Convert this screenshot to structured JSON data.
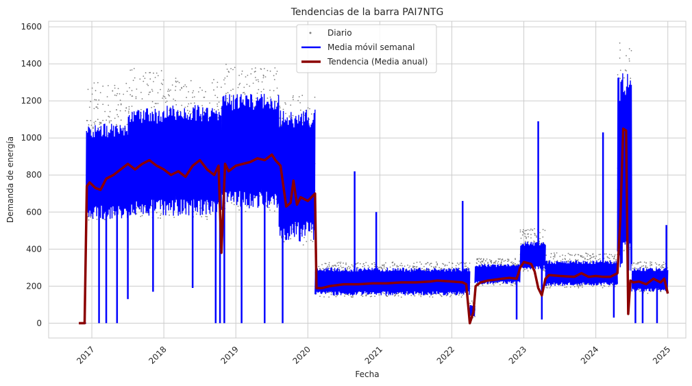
{
  "chart_data": {
    "type": "line",
    "title": "Tendencias de la barra PAI7NTG",
    "xlabel": "Fecha",
    "ylabel": "Demanda de energía",
    "xlim": [
      2016.4,
      2025.25
    ],
    "ylim": [
      -80,
      1630
    ],
    "x_ticks": [
      2017,
      2018,
      2019,
      2020,
      2021,
      2022,
      2023,
      2024,
      2025
    ],
    "x_tick_labels": [
      "2017",
      "2018",
      "2019",
      "2020",
      "2021",
      "2022",
      "2023",
      "2024",
      "2025"
    ],
    "y_ticks": [
      0,
      200,
      400,
      600,
      800,
      1000,
      1200,
      1400,
      1600
    ],
    "y_tick_labels": [
      "0",
      "200",
      "400",
      "600",
      "800",
      "1000",
      "1200",
      "1400",
      "1600"
    ],
    "grid": true,
    "legend_position": "upper center",
    "colors": {
      "daily": "#808080",
      "weekly": "#0000ff",
      "trend": "#8b0000",
      "grid": "#cccccc",
      "axes_edge": "#cccccc"
    },
    "series": [
      {
        "name": "Diario",
        "style": "scatter",
        "segments": [
          {
            "x": [
              2016.82,
              2016.92
            ],
            "low": 0,
            "high": 0
          },
          {
            "x": [
              2016.92,
              2017.5
            ],
            "low": 550,
            "high": 1300
          },
          {
            "x": [
              2017.5,
              2018.0
            ],
            "low": 560,
            "high": 1380
          },
          {
            "x": [
              2018.0,
              2018.8
            ],
            "low": 560,
            "high": 1330
          },
          {
            "x": [
              2018.8,
              2019.6
            ],
            "low": 600,
            "high": 1400
          },
          {
            "x": [
              2019.6,
              2020.1
            ],
            "low": 420,
            "high": 1230
          },
          {
            "x": [
              2020.1,
              2022.25
            ],
            "low": 140,
            "high": 330
          },
          {
            "x": [
              2022.25,
              2022.32
            ],
            "low": 20,
            "high": 120
          },
          {
            "x": [
              2022.32,
              2022.95
            ],
            "low": 200,
            "high": 350
          },
          {
            "x": [
              2022.95,
              2023.3
            ],
            "low": 280,
            "high": 510
          },
          {
            "x": [
              2023.3,
              2024.3
            ],
            "low": 190,
            "high": 380
          },
          {
            "x": [
              2024.3,
              2024.5
            ],
            "low": 260,
            "high": 1520
          },
          {
            "x": [
              2024.5,
              2025.0
            ],
            "low": 160,
            "high": 330
          }
        ]
      },
      {
        "name": "Media móvil semanal",
        "style": "band",
        "segments": [
          {
            "x": [
              2016.82,
              2016.92
            ],
            "low": 0,
            "high": 0
          },
          {
            "x": [
              2016.92,
              2017.5
            ],
            "low": 560,
            "high": 1080
          },
          {
            "x": [
              2017.5,
              2018.0
            ],
            "low": 580,
            "high": 1160
          },
          {
            "x": [
              2018.0,
              2018.8
            ],
            "low": 580,
            "high": 1180
          },
          {
            "x": [
              2018.8,
              2019.6
            ],
            "low": 620,
            "high": 1240
          },
          {
            "x": [
              2019.6,
              2020.1
            ],
            "low": 440,
            "high": 1160
          },
          {
            "x": [
              2020.1,
              2022.25
            ],
            "low": 150,
            "high": 300
          },
          {
            "x": [
              2022.25,
              2022.32
            ],
            "low": 30,
            "high": 100
          },
          {
            "x": [
              2022.32,
              2022.95
            ],
            "low": 210,
            "high": 320
          },
          {
            "x": [
              2022.95,
              2023.3
            ],
            "low": 290,
            "high": 440
          },
          {
            "x": [
              2023.3,
              2024.3
            ],
            "low": 200,
            "high": 340
          },
          {
            "x": [
              2024.3,
              2024.5
            ],
            "low": 280,
            "high": 1360
          },
          {
            "x": [
              2024.5,
              2025.0
            ],
            "low": 170,
            "high": 300
          }
        ],
        "spikes": [
          {
            "x": 2017.1,
            "low": 0
          },
          {
            "x": 2017.2,
            "low": 0
          },
          {
            "x": 2017.35,
            "low": 0
          },
          {
            "x": 2017.5,
            "low": 130
          },
          {
            "x": 2017.85,
            "low": 170
          },
          {
            "x": 2018.4,
            "low": 190
          },
          {
            "x": 2018.72,
            "low": 0
          },
          {
            "x": 2018.78,
            "low": 0
          },
          {
            "x": 2018.84,
            "low": 0
          },
          {
            "x": 2019.08,
            "low": 0
          },
          {
            "x": 2019.4,
            "low": 0
          },
          {
            "x": 2019.65,
            "low": 0
          },
          {
            "x": 2020.65,
            "high": 820
          },
          {
            "x": 2020.95,
            "high": 600
          },
          {
            "x": 2022.15,
            "high": 660
          },
          {
            "x": 2022.9,
            "low": 20
          },
          {
            "x": 2023.2,
            "high": 1090
          },
          {
            "x": 2023.25,
            "low": 20
          },
          {
            "x": 2024.1,
            "high": 1030
          },
          {
            "x": 2024.25,
            "low": 30
          },
          {
            "x": 2024.35,
            "high": 750
          },
          {
            "x": 2024.55,
            "low": 0
          },
          {
            "x": 2024.65,
            "low": 0
          },
          {
            "x": 2024.85,
            "low": 0
          },
          {
            "x": 2024.98,
            "high": 530
          }
        ]
      },
      {
        "name": "Tendencia (Media anual)",
        "style": "line",
        "x": [
          2016.82,
          2016.9,
          2016.93,
          2016.97,
          2017.05,
          2017.12,
          2017.2,
          2017.3,
          2017.4,
          2017.5,
          2017.6,
          2017.7,
          2017.8,
          2017.9,
          2018.0,
          2018.1,
          2018.2,
          2018.3,
          2018.4,
          2018.5,
          2018.6,
          2018.7,
          2018.76,
          2018.8,
          2018.85,
          2018.9,
          2019.0,
          2019.1,
          2019.2,
          2019.3,
          2019.4,
          2019.5,
          2019.55,
          2019.62,
          2019.7,
          2019.76,
          2019.8,
          2019.85,
          2019.9,
          2020.0,
          2020.1,
          2020.12,
          2020.2,
          2020.3,
          2020.5,
          2020.7,
          2020.9,
          2021.1,
          2021.3,
          2021.5,
          2021.7,
          2021.8,
          2022.0,
          2022.15,
          2022.2,
          2022.25,
          2022.3,
          2022.33,
          2022.4,
          2022.5,
          2022.6,
          2022.7,
          2022.8,
          2022.9,
          2022.95,
          2023.0,
          2023.1,
          2023.15,
          2023.2,
          2023.25,
          2023.3,
          2023.35,
          2023.5,
          2023.7,
          2023.8,
          2023.9,
          2024.0,
          2024.1,
          2024.2,
          2024.3,
          2024.34,
          2024.38,
          2024.42,
          2024.45,
          2024.48,
          2024.52,
          2024.6,
          2024.7,
          2024.8,
          2024.9,
          2024.95,
          2025.0
        ],
        "y": [
          0,
          0,
          740,
          760,
          730,
          720,
          780,
          800,
          830,
          860,
          830,
          860,
          880,
          850,
          830,
          800,
          820,
          790,
          850,
          880,
          830,
          800,
          850,
          380,
          860,
          820,
          850,
          860,
          870,
          890,
          880,
          910,
          880,
          850,
          630,
          650,
          770,
          640,
          680,
          660,
          700,
          190,
          190,
          200,
          210,
          210,
          215,
          215,
          220,
          220,
          225,
          230,
          225,
          220,
          210,
          0,
          60,
          200,
          220,
          230,
          235,
          240,
          245,
          240,
          300,
          330,
          320,
          280,
          190,
          150,
          240,
          260,
          255,
          250,
          270,
          250,
          255,
          250,
          250,
          270,
          560,
          1050,
          1040,
          50,
          230,
          220,
          225,
          210,
          240,
          220,
          240,
          160
        ]
      }
    ]
  }
}
